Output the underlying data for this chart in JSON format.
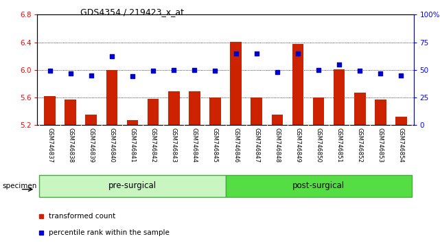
{
  "title": "GDS4354 / 219423_x_at",
  "samples": [
    "GSM746837",
    "GSM746838",
    "GSM746839",
    "GSM746840",
    "GSM746841",
    "GSM746842",
    "GSM746843",
    "GSM746844",
    "GSM746845",
    "GSM746846",
    "GSM746847",
    "GSM746848",
    "GSM746849",
    "GSM746850",
    "GSM746851",
    "GSM746852",
    "GSM746853",
    "GSM746854"
  ],
  "transformed_count": [
    5.62,
    5.57,
    5.35,
    6.0,
    5.27,
    5.58,
    5.69,
    5.69,
    5.6,
    6.41,
    5.6,
    5.35,
    6.38,
    5.6,
    6.01,
    5.67,
    5.57,
    5.32
  ],
  "percentile_rank": [
    49,
    47,
    45,
    62,
    44,
    49,
    50,
    50,
    49,
    65,
    65,
    48,
    65,
    50,
    55,
    49,
    47,
    45
  ],
  "ylim_left": [
    5.2,
    6.8
  ],
  "ylim_right": [
    0,
    100
  ],
  "yticks_left": [
    5.2,
    5.6,
    6.0,
    6.4,
    6.8
  ],
  "yticks_right": [
    0,
    25,
    50,
    75,
    100
  ],
  "ytick_labels_right": [
    "0",
    "25",
    "50",
    "75",
    "100%"
  ],
  "bar_color": "#cc2200",
  "scatter_color": "#0000cc",
  "groups": [
    {
      "label": "pre-surgical",
      "start": 0,
      "end": 8
    },
    {
      "label": "post-surgical",
      "start": 9,
      "end": 17
    }
  ],
  "group_color_light": "#c8f5c0",
  "group_color_dark": "#55dd44",
  "xtick_bg": "#c8c8c8",
  "specimen_label": "specimen",
  "legend_bar_label": "transformed count",
  "legend_scatter_label": "percentile rank within the sample"
}
